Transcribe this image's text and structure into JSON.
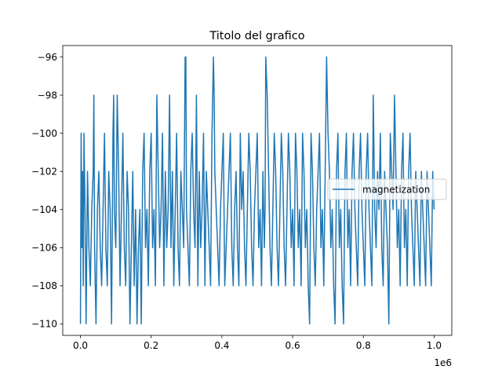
{
  "chart_data": {
    "type": "line",
    "title": "Titolo del grafico",
    "xlabel": "",
    "ylabel": "",
    "x_offset_label": "1e6",
    "xlim": [
      -50000,
      1050000
    ],
    "ylim": [
      -110.6,
      -95.4
    ],
    "x_ticks": [
      0,
      200000,
      400000,
      600000,
      800000,
      1000000
    ],
    "x_tick_labels": [
      "0.0",
      "0.2",
      "0.4",
      "0.6",
      "0.8",
      "1.0"
    ],
    "y_ticks": [
      -96,
      -98,
      -100,
      -102,
      -104,
      -106,
      -108,
      -110
    ],
    "y_tick_labels": [
      "−96",
      "−98",
      "−100",
      "−102",
      "−104",
      "−106",
      "−108",
      "−110"
    ],
    "grid": false,
    "legend_position": "center-right",
    "series": [
      {
        "name": "magnetization",
        "color": "#1f77b4",
        "x": [
          0,
          2000,
          4000,
          6000,
          8000,
          10000,
          13000,
          16000,
          20000,
          24000,
          28000,
          32000,
          36000,
          38000,
          40000,
          44000,
          48000,
          52000,
          56000,
          60000,
          64000,
          68000,
          72000,
          76000,
          80000,
          84000,
          88000,
          92000,
          94000,
          96000,
          100000,
          104000,
          108000,
          112000,
          116000,
          120000,
          124000,
          128000,
          132000,
          136000,
          140000,
          144000,
          148000,
          152000,
          156000,
          160000,
          164000,
          168000,
          172000,
          176000,
          180000,
          184000,
          188000,
          192000,
          196000,
          200000,
          204000,
          208000,
          212000,
          216000,
          220000,
          224000,
          228000,
          232000,
          236000,
          240000,
          244000,
          248000,
          252000,
          256000,
          260000,
          264000,
          268000,
          272000,
          276000,
          280000,
          284000,
          288000,
          292000,
          296000,
          298000,
          300000,
          304000,
          308000,
          312000,
          316000,
          320000,
          324000,
          328000,
          332000,
          336000,
          340000,
          344000,
          348000,
          352000,
          356000,
          360000,
          364000,
          368000,
          372000,
          376000,
          378000,
          380000,
          384000,
          388000,
          392000,
          396000,
          400000,
          404000,
          408000,
          412000,
          416000,
          420000,
          424000,
          428000,
          432000,
          436000,
          440000,
          444000,
          448000,
          452000,
          456000,
          460000,
          464000,
          468000,
          472000,
          476000,
          480000,
          484000,
          488000,
          492000,
          496000,
          500000,
          504000,
          508000,
          512000,
          516000,
          520000,
          522000,
          524000,
          528000,
          532000,
          536000,
          540000,
          544000,
          548000,
          552000,
          556000,
          560000,
          564000,
          568000,
          572000,
          576000,
          580000,
          584000,
          588000,
          592000,
          596000,
          600000,
          604000,
          608000,
          612000,
          616000,
          620000,
          624000,
          628000,
          632000,
          636000,
          640000,
          644000,
          648000,
          652000,
          656000,
          660000,
          664000,
          668000,
          672000,
          676000,
          680000,
          684000,
          688000,
          692000,
          696000,
          700000,
          704000,
          708000,
          712000,
          716000,
          720000,
          724000,
          728000,
          732000,
          736000,
          740000,
          744000,
          748000,
          752000,
          756000,
          760000,
          764000,
          768000,
          772000,
          776000,
          780000,
          784000,
          788000,
          792000,
          796000,
          800000,
          804000,
          808000,
          812000,
          816000,
          820000,
          824000,
          828000,
          832000,
          836000,
          840000,
          844000,
          848000,
          852000,
          856000,
          860000,
          864000,
          868000,
          872000,
          876000,
          880000,
          884000,
          888000,
          892000,
          896000,
          900000,
          904000,
          908000,
          912000,
          916000,
          920000,
          924000,
          928000,
          932000,
          936000,
          940000,
          944000,
          948000,
          952000,
          956000,
          960000,
          964000,
          968000,
          972000,
          976000,
          980000,
          984000,
          988000,
          992000,
          996000,
          1000000
        ],
        "y": [
          -110,
          -100,
          -106,
          -102,
          -108,
          -100,
          -104,
          -110,
          -102,
          -106,
          -108,
          -104,
          -102,
          -98,
          -106,
          -110,
          -104,
          -102,
          -106,
          -108,
          -104,
          -100,
          -106,
          -108,
          -102,
          -104,
          -110,
          -100,
          -98,
          -104,
          -106,
          -98,
          -102,
          -108,
          -104,
          -100,
          -106,
          -108,
          -102,
          -104,
          -110,
          -106,
          -102,
          -108,
          -104,
          -110,
          -106,
          -104,
          -110,
          -102,
          -100,
          -106,
          -104,
          -108,
          -102,
          -100,
          -106,
          -104,
          -108,
          -98,
          -102,
          -106,
          -104,
          -100,
          -108,
          -102,
          -106,
          -104,
          -98,
          -106,
          -102,
          -108,
          -104,
          -100,
          -106,
          -108,
          -102,
          -104,
          -106,
          -96,
          -96,
          -104,
          -106,
          -108,
          -102,
          -100,
          -104,
          -106,
          -98,
          -108,
          -102,
          -106,
          -104,
          -100,
          -108,
          -102,
          -104,
          -106,
          -108,
          -100,
          -96,
          -98,
          -102,
          -104,
          -106,
          -108,
          -104,
          -102,
          -100,
          -108,
          -106,
          -104,
          -102,
          -100,
          -106,
          -108,
          -104,
          -102,
          -106,
          -108,
          -100,
          -104,
          -102,
          -106,
          -108,
          -104,
          -100,
          -102,
          -106,
          -108,
          -104,
          -102,
          -100,
          -106,
          -104,
          -108,
          -102,
          -106,
          -104,
          -96,
          -98,
          -102,
          -106,
          -108,
          -104,
          -100,
          -102,
          -106,
          -108,
          -104,
          -100,
          -102,
          -106,
          -108,
          -104,
          -100,
          -102,
          -106,
          -104,
          -108,
          -100,
          -102,
          -106,
          -104,
          -108,
          -100,
          -102,
          -106,
          -104,
          -108,
          -110,
          -100,
          -102,
          -106,
          -108,
          -104,
          -102,
          -100,
          -106,
          -104,
          -108,
          -102,
          -96,
          -100,
          -102,
          -106,
          -104,
          -108,
          -110,
          -102,
          -100,
          -106,
          -104,
          -108,
          -110,
          -102,
          -100,
          -106,
          -104,
          -108,
          -102,
          -100,
          -104,
          -106,
          -108,
          -102,
          -100,
          -104,
          -106,
          -108,
          -102,
          -100,
          -104,
          -106,
          -108,
          -98,
          -104,
          -106,
          -102,
          -104,
          -100,
          -106,
          -108,
          -102,
          -104,
          -106,
          -110,
          -100,
          -102,
          -104,
          -98,
          -102,
          -106,
          -104,
          -108,
          -102,
          -100,
          -106,
          -104,
          -108,
          -102,
          -100,
          -104,
          -106,
          -108,
          -102,
          -104,
          -106,
          -108,
          -102,
          -104,
          -106,
          -108,
          -102,
          -104,
          -106,
          -108,
          -102,
          -104
        ]
      }
    ]
  }
}
